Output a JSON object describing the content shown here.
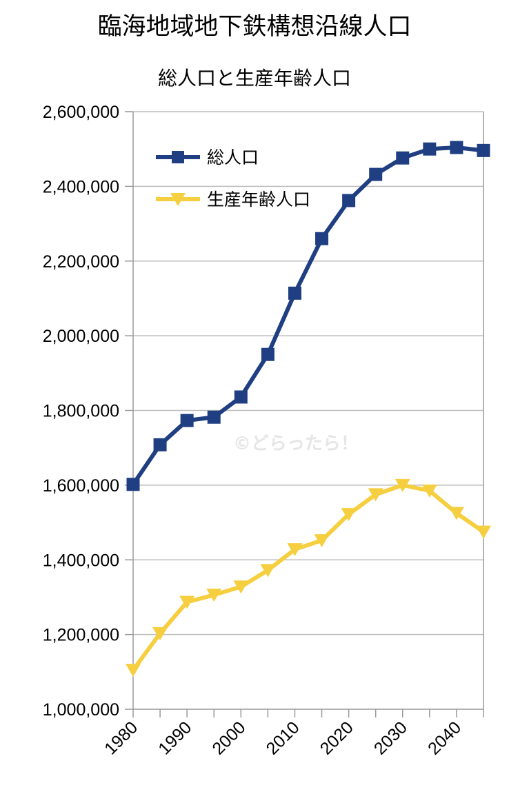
{
  "page_title": "臨海地域地下鉄構想沿線人口",
  "watermark": "©どらったら！",
  "colors": {
    "series1": "#1f3f82",
    "series2": "#f5cf3f",
    "grid": "#bdbdbd",
    "axis": "#999999"
  },
  "chart_data": {
    "type": "line",
    "title": "総人口と生産年齢人口",
    "xlabel": "",
    "ylabel": "",
    "x": [
      1980,
      1985,
      1990,
      1995,
      2000,
      2005,
      2010,
      2015,
      2020,
      2025,
      2030,
      2035,
      2040,
      2045
    ],
    "x_tick_labels": [
      "1980",
      "1990",
      "2000",
      "2010",
      "2020",
      "2030",
      "2040"
    ],
    "x_tick_values": [
      1980,
      1990,
      2000,
      2010,
      2020,
      2030,
      2040
    ],
    "xlim": [
      1980,
      2045
    ],
    "ylim": [
      1000000,
      2600000
    ],
    "y_ticks": [
      1000000,
      1200000,
      1400000,
      1600000,
      1800000,
      2000000,
      2200000,
      2400000,
      2600000
    ],
    "y_tick_labels": [
      "1,000,000",
      "1,200,000",
      "1,400,000",
      "1,600,000",
      "1,800,000",
      "2,000,000",
      "2,200,000",
      "2,400,000",
      "2,600,000"
    ],
    "grid": true,
    "legend_position": "top-left",
    "series": [
      {
        "name": "総人口",
        "marker": "square",
        "values": [
          1602000,
          1708000,
          1773000,
          1782000,
          1836000,
          1950000,
          2114000,
          2260000,
          2362000,
          2432000,
          2476000,
          2500000,
          2504000,
          2496000
        ]
      },
      {
        "name": "生産年齢人口",
        "marker": "triangle-down",
        "values": [
          1105000,
          1203000,
          1287000,
          1306000,
          1328000,
          1372000,
          1428000,
          1452000,
          1522000,
          1575000,
          1600000,
          1585000,
          1525000,
          1475000
        ]
      }
    ]
  }
}
